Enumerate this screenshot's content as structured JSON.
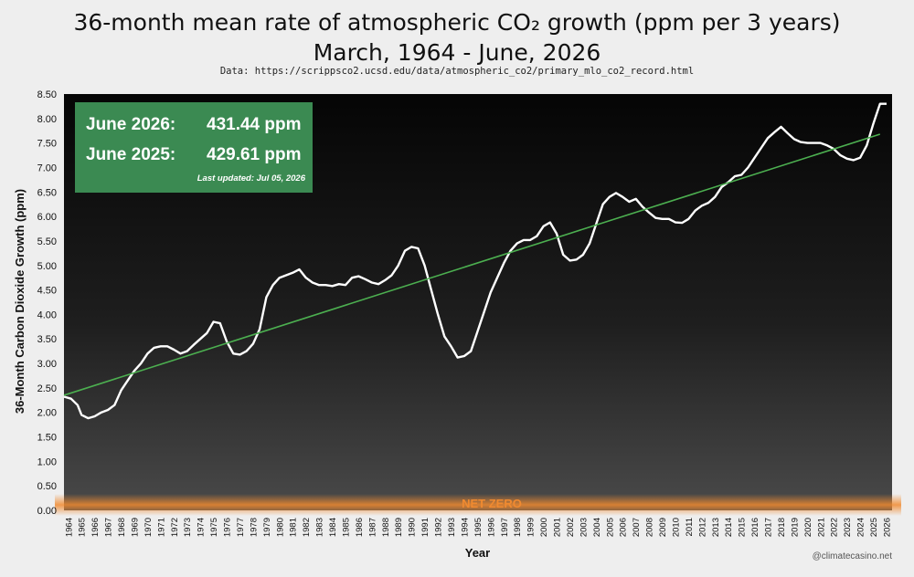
{
  "title_line1": "36-month mean rate of atmospheric CO₂ growth (ppm per 3 years)",
  "title_line2": "March, 1964 - June, 2026",
  "source_text": "Data: https://scrippsco2.ucsd.edu/data/atmospheric_co2/primary_mlo_co2_record.html",
  "stats": {
    "row1_label": "June 2026:",
    "row1_value": "431.44 ppm",
    "row2_label": "June 2025:",
    "row2_value": "429.61 ppm",
    "updated": "Last updated: Jul 05, 2026"
  },
  "credit": "@climatecasino.net",
  "net_zero_label": "NET ZERO",
  "colors": {
    "plot_bg": "#0d0d0d",
    "bars": "#ffffff",
    "outline": "#ffffff",
    "trend": "#4caf50",
    "net_zero_glow": "#f08a30",
    "stats_box": "#3b8a52"
  },
  "chart_data": {
    "type": "area",
    "title": "36-month mean rate of atmospheric CO₂ growth (ppm per 3 years)",
    "subtitle": "March, 1964 - June, 2026",
    "xlabel": "Year",
    "ylabel": "36-Month Carbon Dioxide Growth (ppm)",
    "xlim": [
      1964.17,
      2026.5
    ],
    "ylim": [
      0,
      8.5
    ],
    "yticks": [
      "0.00",
      "0.50",
      "1.00",
      "1.50",
      "2.00",
      "2.50",
      "3.00",
      "3.50",
      "4.00",
      "4.50",
      "5.00",
      "5.50",
      "6.00",
      "6.50",
      "7.00",
      "7.50",
      "8.00",
      "8.50"
    ],
    "xticks": [
      "1964",
      "1965",
      "1966",
      "1967",
      "1968",
      "1969",
      "1970",
      "1971",
      "1972",
      "1973",
      "1974",
      "1975",
      "1976",
      "1977",
      "1978",
      "1979",
      "1980",
      "1981",
      "1982",
      "1983",
      "1984",
      "1985",
      "1986",
      "1987",
      "1988",
      "1989",
      "1990",
      "1991",
      "1992",
      "1993",
      "1994",
      "1995",
      "1996",
      "1997",
      "1998",
      "1999",
      "2000",
      "2001",
      "2002",
      "2003",
      "2004",
      "2005",
      "2006",
      "2007",
      "2008",
      "2009",
      "2010",
      "2011",
      "2012",
      "2013",
      "2014",
      "2015",
      "2016",
      "2017",
      "2018",
      "2019",
      "2020",
      "2021",
      "2022",
      "2023",
      "2024",
      "2025",
      "2026"
    ],
    "series": [
      {
        "x": [
          1964.17,
          1964.7,
          1965.2,
          1965.5,
          1966.0,
          1966.5,
          1967.0,
          1967.5,
          1968.0,
          1968.5,
          1969.0,
          1969.5,
          1970.0,
          1970.5,
          1971.0,
          1971.5,
          1972.0,
          1972.5,
          1973.0,
          1973.5,
          1974.0,
          1974.5,
          1975.0,
          1975.5,
          1976.0,
          1976.5,
          1977.0,
          1977.5,
          1978.0,
          1978.5,
          1979.0,
          1979.5,
          1980.0,
          1980.5,
          1981.0,
          1981.5,
          1982.0,
          1982.5,
          1983.0,
          1983.5,
          1984.0,
          1984.5,
          1985.0,
          1985.5,
          1986.0,
          1986.5,
          1987.0,
          1987.5,
          1988.0,
          1988.5,
          1989.0,
          1989.5,
          1990.0,
          1990.5,
          1991.0,
          1991.5,
          1992.0,
          1992.5,
          1993.0,
          1993.5,
          1994.0,
          1994.5,
          1995.0,
          1995.5,
          1996.0,
          1996.5,
          1997.0,
          1997.5,
          1998.0,
          1998.5,
          1999.0,
          1999.5,
          2000.0,
          2000.5,
          2001.0,
          2001.5,
          2002.0,
          2002.5,
          2003.0,
          2003.5,
          2004.0,
          2004.5,
          2005.0,
          2005.5,
          2006.0,
          2006.5,
          2007.0,
          2007.5,
          2008.0,
          2008.5,
          2009.0,
          2009.5,
          2010.0,
          2010.5,
          2011.0,
          2011.5,
          2012.0,
          2012.5,
          2013.0,
          2013.5,
          2014.0,
          2014.5,
          2015.0,
          2015.5,
          2016.0,
          2016.5,
          2017.0,
          2017.5,
          2018.0,
          2018.5,
          2019.0,
          2019.5,
          2020.0,
          2020.5,
          2021.0,
          2021.5,
          2022.0,
          2022.5,
          2023.0,
          2023.5,
          2024.0,
          2024.5,
          2025.0,
          2025.5,
          2026.0,
          2026.5
        ],
        "y": [
          2.32,
          2.28,
          2.15,
          1.95,
          1.88,
          1.92,
          2.0,
          2.05,
          2.15,
          2.45,
          2.65,
          2.85,
          3.0,
          3.2,
          3.32,
          3.35,
          3.35,
          3.28,
          3.2,
          3.25,
          3.38,
          3.5,
          3.62,
          3.85,
          3.82,
          3.45,
          3.2,
          3.18,
          3.25,
          3.4,
          3.7,
          4.35,
          4.6,
          4.75,
          4.8,
          4.85,
          4.92,
          4.75,
          4.65,
          4.6,
          4.6,
          4.58,
          4.62,
          4.6,
          4.75,
          4.78,
          4.72,
          4.65,
          4.62,
          4.7,
          4.8,
          5.0,
          5.3,
          5.38,
          5.35,
          5.0,
          4.5,
          4.0,
          3.55,
          3.35,
          3.12,
          3.15,
          3.25,
          3.65,
          4.05,
          4.45,
          4.75,
          5.05,
          5.3,
          5.45,
          5.52,
          5.52,
          5.6,
          5.8,
          5.88,
          5.65,
          5.22,
          5.1,
          5.12,
          5.22,
          5.45,
          5.85,
          6.25,
          6.4,
          6.48,
          6.4,
          6.3,
          6.36,
          6.2,
          6.08,
          5.97,
          5.95,
          5.95,
          5.88,
          5.87,
          5.95,
          6.12,
          6.22,
          6.28,
          6.4,
          6.6,
          6.7,
          6.82,
          6.85,
          7.0,
          7.2,
          7.4,
          7.6,
          7.72,
          7.83,
          7.7,
          7.58,
          7.52,
          7.5,
          7.5,
          7.5,
          7.45,
          7.38,
          7.25,
          7.18,
          7.15,
          7.2,
          7.45,
          7.9,
          8.3,
          8.3
        ]
      }
    ],
    "trendline": {
      "x": [
        1964.17,
        2026.0
      ],
      "y": [
        2.35,
        7.68
      ]
    },
    "annotations": [
      "NET ZERO"
    ]
  }
}
